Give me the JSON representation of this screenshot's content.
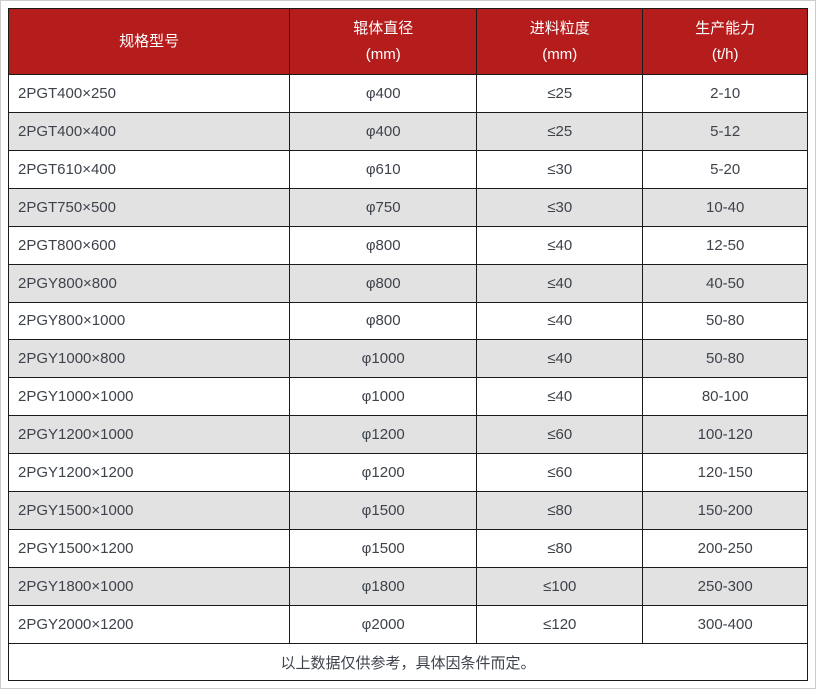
{
  "colors": {
    "header_bg": "#b51c1c",
    "header_text": "#ffffff",
    "row_alt_bg": "#e2e2e2",
    "body_text": "#3e434b",
    "grid_border": "#1b1b1b",
    "outer_edge": "#cccccc"
  },
  "table": {
    "columns": [
      {
        "title": "规格型号",
        "unit": ""
      },
      {
        "title": "辊体直径",
        "unit": "(mm)"
      },
      {
        "title": "进料粒度",
        "unit": "(mm)"
      },
      {
        "title": "生产能力",
        "unit": "(t/h)"
      }
    ],
    "rows": [
      {
        "model": "2PGT400×250",
        "diameter": "φ400",
        "feed": "≤25",
        "capacity": "2-10"
      },
      {
        "model": "2PGT400×400",
        "diameter": "φ400",
        "feed": "≤25",
        "capacity": "5-12"
      },
      {
        "model": "2PGT610×400",
        "diameter": "φ610",
        "feed": "≤30",
        "capacity": "5-20"
      },
      {
        "model": "2PGT750×500",
        "diameter": "φ750",
        "feed": "≤30",
        "capacity": "10-40"
      },
      {
        "model": "2PGT800×600",
        "diameter": "φ800",
        "feed": "≤40",
        "capacity": "12-50"
      },
      {
        "model": "2PGY800×800",
        "diameter": "φ800",
        "feed": "≤40",
        "capacity": "40-50"
      },
      {
        "model": "2PGY800×1000",
        "diameter": "φ800",
        "feed": "≤40",
        "capacity": "50-80"
      },
      {
        "model": "2PGY1000×800",
        "diameter": "φ1000",
        "feed": "≤40",
        "capacity": "50-80"
      },
      {
        "model": "2PGY1000×1000",
        "diameter": "φ1000",
        "feed": "≤40",
        "capacity": "80-100"
      },
      {
        "model": "2PGY1200×1000",
        "diameter": "φ1200",
        "feed": "≤60",
        "capacity": "100-120"
      },
      {
        "model": "2PGY1200×1200",
        "diameter": "φ1200",
        "feed": "≤60",
        "capacity": "120-150"
      },
      {
        "model": "2PGY1500×1000",
        "diameter": "φ1500",
        "feed": "≤80",
        "capacity": "150-200"
      },
      {
        "model": "2PGY1500×1200",
        "diameter": "φ1500",
        "feed": "≤80",
        "capacity": "200-250"
      },
      {
        "model": "2PGY1800×1000",
        "diameter": "φ1800",
        "feed": "≤100",
        "capacity": "250-300"
      },
      {
        "model": "2PGY2000×1200",
        "diameter": "φ2000",
        "feed": "≤120",
        "capacity": "300-400"
      }
    ],
    "footnote": "以上数据仅供参考，具体因条件而定。"
  }
}
